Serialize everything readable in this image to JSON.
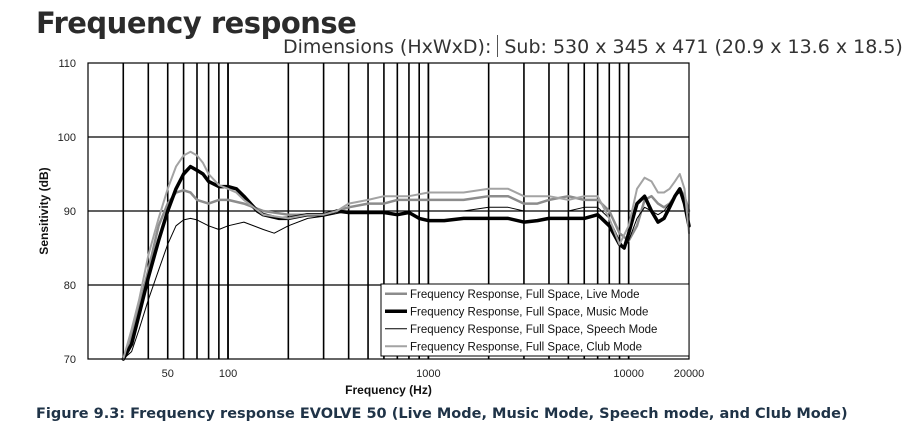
{
  "header": {
    "title": "Frequency response",
    "dimensions_label": "Dimensions (HxWxD):",
    "dimensions_value": "Sub: 530 x 345 x 471 (20.9 x 13.6 x 18.5)"
  },
  "caption": "Figure 9.3: Frequency response EVOLVE 50 (Live Mode, Music Mode, Speech mode, and Club Mode)",
  "chart_data": {
    "type": "line",
    "xlabel": "Frequency (Hz)",
    "ylabel": "Sensitivity (dB)",
    "xscale": "log",
    "xlim": [
      20,
      20000
    ],
    "ylim": [
      70,
      110
    ],
    "x_ticks": [
      50,
      100,
      1000,
      10000,
      20000
    ],
    "x_tick_labels": [
      "50",
      "100",
      "1000",
      "10000",
      "20000"
    ],
    "y_ticks": [
      70,
      80,
      90,
      100,
      110
    ],
    "y_tick_labels": [
      "70",
      "80",
      "90",
      "100",
      "110"
    ],
    "grid": true,
    "legend_position": "bottom-right",
    "series": [
      {
        "name": "Frequency Response, Full Space, Live Mode",
        "color": "#8c8c8c",
        "width": 2.5,
        "points": [
          [
            30,
            70
          ],
          [
            33,
            73
          ],
          [
            36,
            77
          ],
          [
            40,
            82
          ],
          [
            45,
            88
          ],
          [
            50,
            91
          ],
          [
            55,
            92.5
          ],
          [
            60,
            92.8
          ],
          [
            65,
            92.5
          ],
          [
            70,
            91.5
          ],
          [
            80,
            91
          ],
          [
            90,
            91.5
          ],
          [
            100,
            91.5
          ],
          [
            120,
            91
          ],
          [
            150,
            90
          ],
          [
            200,
            89.5
          ],
          [
            250,
            89.5
          ],
          [
            300,
            89.5
          ],
          [
            350,
            90
          ],
          [
            400,
            90.5
          ],
          [
            500,
            91
          ],
          [
            600,
            91
          ],
          [
            700,
            91.5
          ],
          [
            800,
            91.5
          ],
          [
            1000,
            91.5
          ],
          [
            1500,
            91.5
          ],
          [
            2000,
            92
          ],
          [
            2500,
            92
          ],
          [
            3000,
            91
          ],
          [
            3500,
            91
          ],
          [
            4000,
            91.5
          ],
          [
            5000,
            92
          ],
          [
            6000,
            91.5
          ],
          [
            7000,
            91.5
          ],
          [
            8000,
            90
          ],
          [
            9000,
            87
          ],
          [
            10000,
            86
          ],
          [
            11000,
            88
          ],
          [
            12000,
            91.5
          ],
          [
            13000,
            92
          ],
          [
            14000,
            91
          ],
          [
            15000,
            90.5
          ],
          [
            16000,
            91
          ],
          [
            17000,
            92
          ],
          [
            18000,
            93
          ],
          [
            19000,
            92
          ],
          [
            20000,
            90
          ]
        ]
      },
      {
        "name": "Frequency Response, Full Space, Music Mode",
        "color": "#000000",
        "width": 3.5,
        "points": [
          [
            30,
            70
          ],
          [
            33,
            72
          ],
          [
            36,
            76
          ],
          [
            40,
            81
          ],
          [
            45,
            86
          ],
          [
            50,
            90
          ],
          [
            55,
            93
          ],
          [
            60,
            95
          ],
          [
            65,
            96
          ],
          [
            70,
            95.5
          ],
          [
            75,
            95
          ],
          [
            80,
            94
          ],
          [
            90,
            93.3
          ],
          [
            100,
            93.3
          ],
          [
            110,
            93
          ],
          [
            120,
            92
          ],
          [
            140,
            90
          ],
          [
            150,
            89.5
          ],
          [
            180,
            89
          ],
          [
            200,
            89
          ],
          [
            250,
            89.5
          ],
          [
            300,
            89.5
          ],
          [
            350,
            90
          ],
          [
            400,
            89.8
          ],
          [
            500,
            89.8
          ],
          [
            600,
            89.8
          ],
          [
            700,
            89.5
          ],
          [
            800,
            89.8
          ],
          [
            900,
            89
          ],
          [
            1000,
            88.7
          ],
          [
            1200,
            88.7
          ],
          [
            1500,
            89
          ],
          [
            2000,
            89
          ],
          [
            2500,
            89
          ],
          [
            3000,
            88.5
          ],
          [
            3500,
            88.7
          ],
          [
            4000,
            89
          ],
          [
            5000,
            89
          ],
          [
            6000,
            89
          ],
          [
            7000,
            89.5
          ],
          [
            8000,
            88
          ],
          [
            9000,
            85.5
          ],
          [
            9500,
            85
          ],
          [
            10000,
            87
          ],
          [
            11000,
            91
          ],
          [
            12000,
            92
          ],
          [
            13000,
            90
          ],
          [
            14000,
            88.5
          ],
          [
            15000,
            89
          ],
          [
            16000,
            90.5
          ],
          [
            17000,
            92
          ],
          [
            18000,
            93
          ],
          [
            19000,
            91
          ],
          [
            20000,
            88
          ]
        ]
      },
      {
        "name": "Frequency Response, Full Space, Speech Mode",
        "color": "#000000",
        "width": 1,
        "points": [
          [
            30,
            70
          ],
          [
            33,
            71
          ],
          [
            36,
            74
          ],
          [
            40,
            78
          ],
          [
            45,
            82
          ],
          [
            50,
            85.5
          ],
          [
            55,
            88
          ],
          [
            60,
            88.8
          ],
          [
            65,
            89
          ],
          [
            70,
            88.8
          ],
          [
            80,
            88
          ],
          [
            90,
            87.5
          ],
          [
            100,
            88
          ],
          [
            120,
            88.5
          ],
          [
            150,
            87.5
          ],
          [
            170,
            87
          ],
          [
            200,
            88
          ],
          [
            250,
            89
          ],
          [
            300,
            89.3
          ],
          [
            400,
            90
          ],
          [
            500,
            90
          ],
          [
            600,
            90
          ],
          [
            700,
            90
          ],
          [
            800,
            90
          ],
          [
            1000,
            90
          ],
          [
            1500,
            90
          ],
          [
            2000,
            90.5
          ],
          [
            2500,
            90.5
          ],
          [
            3000,
            90
          ],
          [
            3500,
            90
          ],
          [
            4000,
            90
          ],
          [
            5000,
            90
          ],
          [
            6000,
            90.5
          ],
          [
            7000,
            90.5
          ],
          [
            8000,
            89
          ],
          [
            9000,
            86
          ],
          [
            9500,
            85
          ],
          [
            10000,
            86
          ],
          [
            11000,
            89
          ],
          [
            12000,
            90.5
          ],
          [
            13000,
            90
          ],
          [
            14000,
            89.5
          ],
          [
            15000,
            90
          ],
          [
            16000,
            91
          ],
          [
            17000,
            92
          ],
          [
            18000,
            92.5
          ],
          [
            19000,
            91
          ],
          [
            20000,
            88
          ]
        ]
      },
      {
        "name": "Frequency Response, Full Space, Club Mode",
        "color": "#a3a3a3",
        "width": 2,
        "points": [
          [
            30,
            70
          ],
          [
            33,
            74
          ],
          [
            36,
            78
          ],
          [
            40,
            84
          ],
          [
            45,
            89
          ],
          [
            50,
            93
          ],
          [
            55,
            96
          ],
          [
            60,
            97.5
          ],
          [
            65,
            98
          ],
          [
            70,
            97.5
          ],
          [
            75,
            96.5
          ],
          [
            80,
            95
          ],
          [
            90,
            93.5
          ],
          [
            100,
            93
          ],
          [
            110,
            92.5
          ],
          [
            120,
            91.5
          ],
          [
            150,
            89.5
          ],
          [
            200,
            89
          ],
          [
            250,
            89.5
          ],
          [
            300,
            89.5
          ],
          [
            350,
            90
          ],
          [
            400,
            91
          ],
          [
            500,
            91.5
          ],
          [
            600,
            92
          ],
          [
            700,
            92
          ],
          [
            800,
            92
          ],
          [
            1000,
            92.5
          ],
          [
            1500,
            92.5
          ],
          [
            2000,
            93
          ],
          [
            2500,
            93
          ],
          [
            3000,
            92
          ],
          [
            3500,
            92
          ],
          [
            4000,
            92
          ],
          [
            5000,
            91.5
          ],
          [
            6000,
            92
          ],
          [
            7000,
            92
          ],
          [
            8000,
            89
          ],
          [
            9000,
            85.5
          ],
          [
            10000,
            88
          ],
          [
            11000,
            93
          ],
          [
            12000,
            94.5
          ],
          [
            13000,
            94
          ],
          [
            14000,
            92.5
          ],
          [
            15000,
            92.5
          ],
          [
            16000,
            93
          ],
          [
            17000,
            94
          ],
          [
            18000,
            95
          ],
          [
            19000,
            93
          ],
          [
            20000,
            87
          ]
        ]
      }
    ]
  }
}
